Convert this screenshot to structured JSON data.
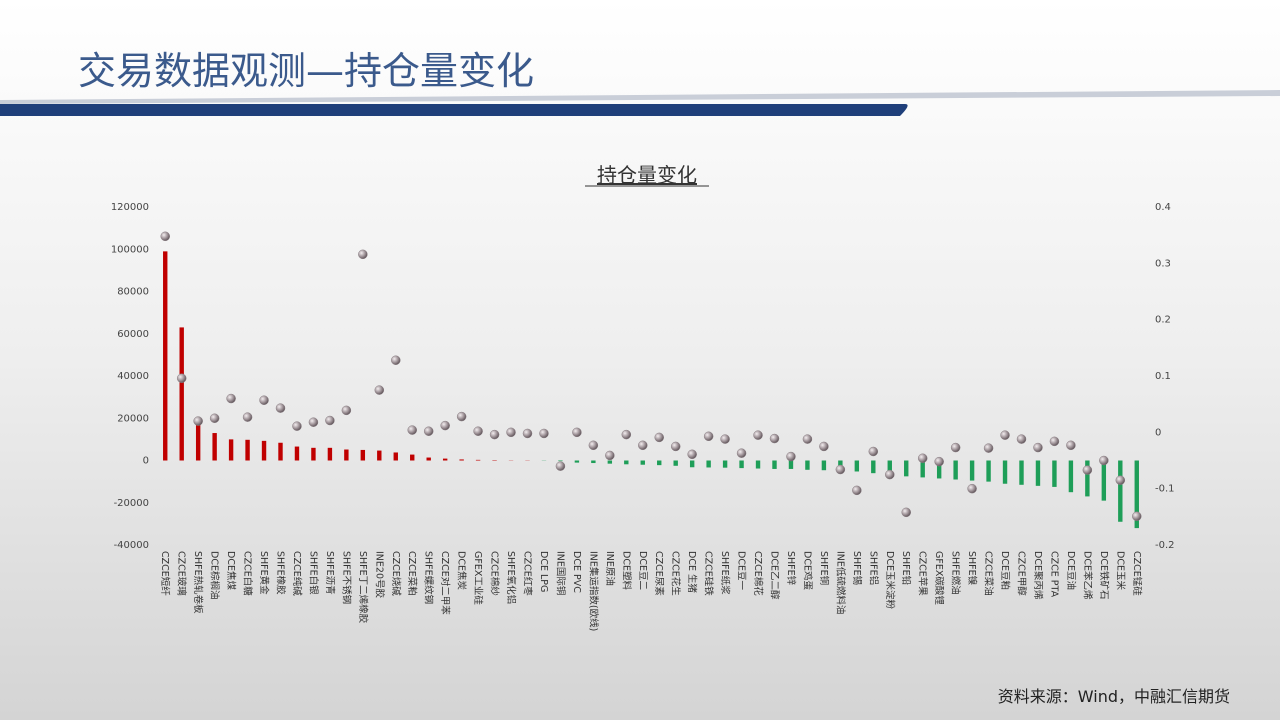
{
  "header": {
    "title": "交易数据观测—持仓量变化"
  },
  "footer": {
    "source": "资料来源：Wind，中融汇信期货"
  },
  "chart_data": {
    "type": "bar",
    "title": "持仓量变化",
    "categories": [
      "CZCE短纤",
      "CZCE玻璃",
      "SHFE热轧卷板",
      "DCE棕榈油",
      "DCE焦煤",
      "CZCE白糖",
      "SHFE黄金",
      "SHFE橡胶",
      "CZCE纯碱",
      "SHFE白银",
      "SHFE沥青",
      "SHFE不锈钢",
      "SHFE丁二烯橡胶",
      "INE20号胶",
      "CZCE烧碱",
      "CZCE菜粕",
      "SHFE螺纹钢",
      "CZCE对二甲苯",
      "DCE焦炭",
      "GFEX工业硅",
      "CZCE棉纱",
      "SHFE氧化铝",
      "CZCE红枣",
      "DCE LPG",
      "INE国际铜",
      "DCE PVC",
      "INE集运指数(欧线)",
      "INE原油",
      "DCE塑料",
      "DCE豆二",
      "CZCE尿素",
      "CZCE花生",
      "DCE 生猪",
      "CZCE硅铁",
      "SHFE纸浆",
      "DCE豆一",
      "CZCE棉花",
      "DCE乙二醇",
      "SHFE锌",
      "DCE鸡蛋",
      "SHFE铜",
      "INE低硫燃料油",
      "SHFE锡",
      "SHFE铝",
      "DCE玉米淀粉",
      "SHFE铅",
      "CZCE苹果",
      "GFEX碳酸锂",
      "SHFE燃油",
      "SHFE镍",
      "CZCE菜油",
      "DCE豆粕",
      "CZCE甲醇",
      "DCE聚丙烯",
      "CZCE PTA",
      "DCE豆油",
      "DCE苯乙烯",
      "DCE铁矿石",
      "DCE玉米",
      "CZCE锰硅"
    ],
    "series": [
      {
        "type": "bar",
        "color": "#c00000",
        "negative_color": "#1e9e58",
        "values": [
          99000,
          63000,
          19000,
          13000,
          10000,
          9800,
          9300,
          8400,
          6600,
          6000,
          6000,
          5200,
          5000,
          4700,
          3800,
          2800,
          1400,
          900,
          500,
          300,
          200,
          100,
          100,
          -100,
          -300,
          -1000,
          -1200,
          -1500,
          -1800,
          -2000,
          -2200,
          -2500,
          -3200,
          -3300,
          -3400,
          -3600,
          -3800,
          -4000,
          -4000,
          -4400,
          -4600,
          -5000,
          -5200,
          -6000,
          -7000,
          -7500,
          -8000,
          -8500,
          -9000,
          -9500,
          -10000,
          -11000,
          -11500,
          -12000,
          -12500,
          -15000,
          -17000,
          -19000,
          -29000,
          -32000
        ]
      },
      {
        "type": "scatter",
        "axis": "y2",
        "color": "#8a7f84",
        "values": [
          0.348,
          0.096,
          0.02,
          0.025,
          0.06,
          0.027,
          0.057,
          0.043,
          0.011,
          0.018,
          0.021,
          0.039,
          0.316,
          0.075,
          0.128,
          0.004,
          0.002,
          0.012,
          0.028,
          0.002,
          -0.004,
          0,
          -0.002,
          -0.002,
          -0.06,
          0,
          -0.023,
          -0.041,
          -0.004,
          -0.023,
          -0.009,
          -0.025,
          -0.039,
          -0.007,
          -0.012,
          -0.037,
          -0.005,
          -0.011,
          -0.043,
          -0.012,
          -0.025,
          -0.066,
          -0.103,
          -0.034,
          -0.075,
          -0.142,
          -0.046,
          -0.052,
          -0.027,
          -0.1,
          -0.028,
          -0.005,
          -0.012,
          -0.027,
          -0.016,
          -0.023,
          -0.067,
          -0.05,
          -0.085,
          -0.149
        ]
      }
    ],
    "ylim": [
      -40000,
      120000
    ],
    "yticks": [
      120000,
      100000,
      80000,
      60000,
      40000,
      20000,
      0,
      -20000,
      -40000
    ],
    "y2lim": [
      -0.2,
      0.4
    ],
    "y2ticks": [
      0.4,
      0.3,
      0.2,
      0.1,
      0,
      -0.1,
      -0.2
    ],
    "grid": false
  }
}
